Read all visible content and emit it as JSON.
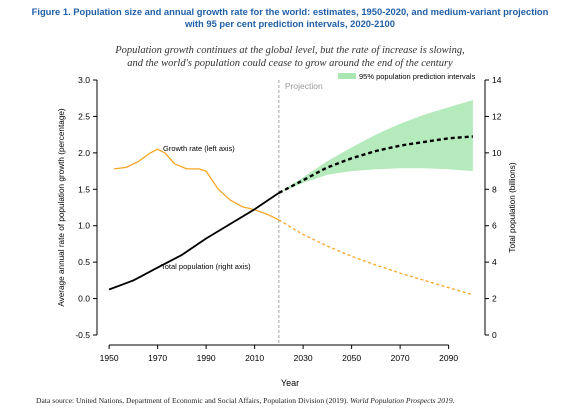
{
  "figure": {
    "title_line1": "Figure 1. Population size and annual growth rate for the world: estimates, 1950-2020, and medium-variant projection",
    "title_line2": "with 95 per cent prediction intervals, 2020-2100",
    "subtitle_line1": "Population growth continues at the global level, but the rate of increase is slowing,",
    "subtitle_line2": "and the world's population could cease to grow around the end of the century",
    "source_text": "Data source: United Nations, Department of Economic and Social Affairs, Population Division (2019). ",
    "source_italic": "World Population Prospects 2019."
  },
  "colors": {
    "growth": "#f5a623",
    "population": "#000000",
    "interval": "#a8e6b2",
    "projection_line": "#999999"
  },
  "chart_data": {
    "type": "line",
    "xlabel": "Year",
    "ylabel_left": "Average annual rate of population growth (percentage)",
    "ylabel_right": "Total population (billions)",
    "xlim": [
      1945,
      2105
    ],
    "ylim_left": [
      -0.5,
      3.0
    ],
    "ylim_right": [
      0,
      14
    ],
    "x_ticks": [
      1950,
      1970,
      1990,
      2010,
      2030,
      2050,
      2070,
      2090
    ],
    "y_ticks_left": [
      -0.5,
      0.0,
      0.5,
      1.0,
      1.5,
      2.0,
      2.5,
      3.0
    ],
    "y_ticks_right": [
      0,
      2,
      4,
      6,
      8,
      10,
      12,
      14
    ],
    "projection_start": 2020,
    "projection_label": "Projection",
    "legend": {
      "position": "top-right",
      "label": "95% population prediction intervals"
    },
    "annotations": {
      "growth": "Growth rate (left axis)",
      "population": "Total population (right axis)"
    },
    "series": [
      {
        "name": "Growth rate (left axis)",
        "axis": "left",
        "style": "solid",
        "x": [
          1952,
          1957,
          1962,
          1967,
          1970,
          1973,
          1977,
          1982,
          1987,
          1990,
          1995,
          2000,
          2005,
          2010,
          2015,
          2020
        ],
        "y": [
          1.78,
          1.8,
          1.88,
          2.0,
          2.05,
          2.0,
          1.85,
          1.78,
          1.78,
          1.75,
          1.5,
          1.35,
          1.26,
          1.22,
          1.16,
          1.08
        ]
      },
      {
        "name": "Growth rate projection",
        "axis": "left",
        "style": "dashed",
        "x": [
          2020,
          2030,
          2040,
          2050,
          2060,
          2070,
          2080,
          2090,
          2100
        ],
        "y": [
          1.08,
          0.88,
          0.72,
          0.58,
          0.46,
          0.35,
          0.25,
          0.15,
          0.05
        ]
      },
      {
        "name": "Total population (right axis)",
        "axis": "right",
        "style": "solid",
        "x": [
          1950,
          1960,
          1970,
          1980,
          1990,
          2000,
          2010,
          2020
        ],
        "y": [
          2.5,
          3.0,
          3.7,
          4.4,
          5.3,
          6.1,
          6.9,
          7.8
        ]
      },
      {
        "name": "Total population projection",
        "axis": "right",
        "style": "dashed",
        "x": [
          2020,
          2030,
          2040,
          2050,
          2060,
          2070,
          2080,
          2090,
          2100
        ],
        "y": [
          7.8,
          8.5,
          9.2,
          9.7,
          10.1,
          10.4,
          10.6,
          10.8,
          10.9
        ]
      }
    ],
    "interval": {
      "axis": "right",
      "x": [
        2020,
        2030,
        2040,
        2050,
        2060,
        2070,
        2080,
        2090,
        2100
      ],
      "lower": [
        7.8,
        8.35,
        8.8,
        9.0,
        9.1,
        9.15,
        9.15,
        9.1,
        9.0
      ],
      "upper": [
        7.8,
        8.65,
        9.55,
        10.3,
        11.0,
        11.6,
        12.1,
        12.5,
        12.9
      ]
    }
  }
}
